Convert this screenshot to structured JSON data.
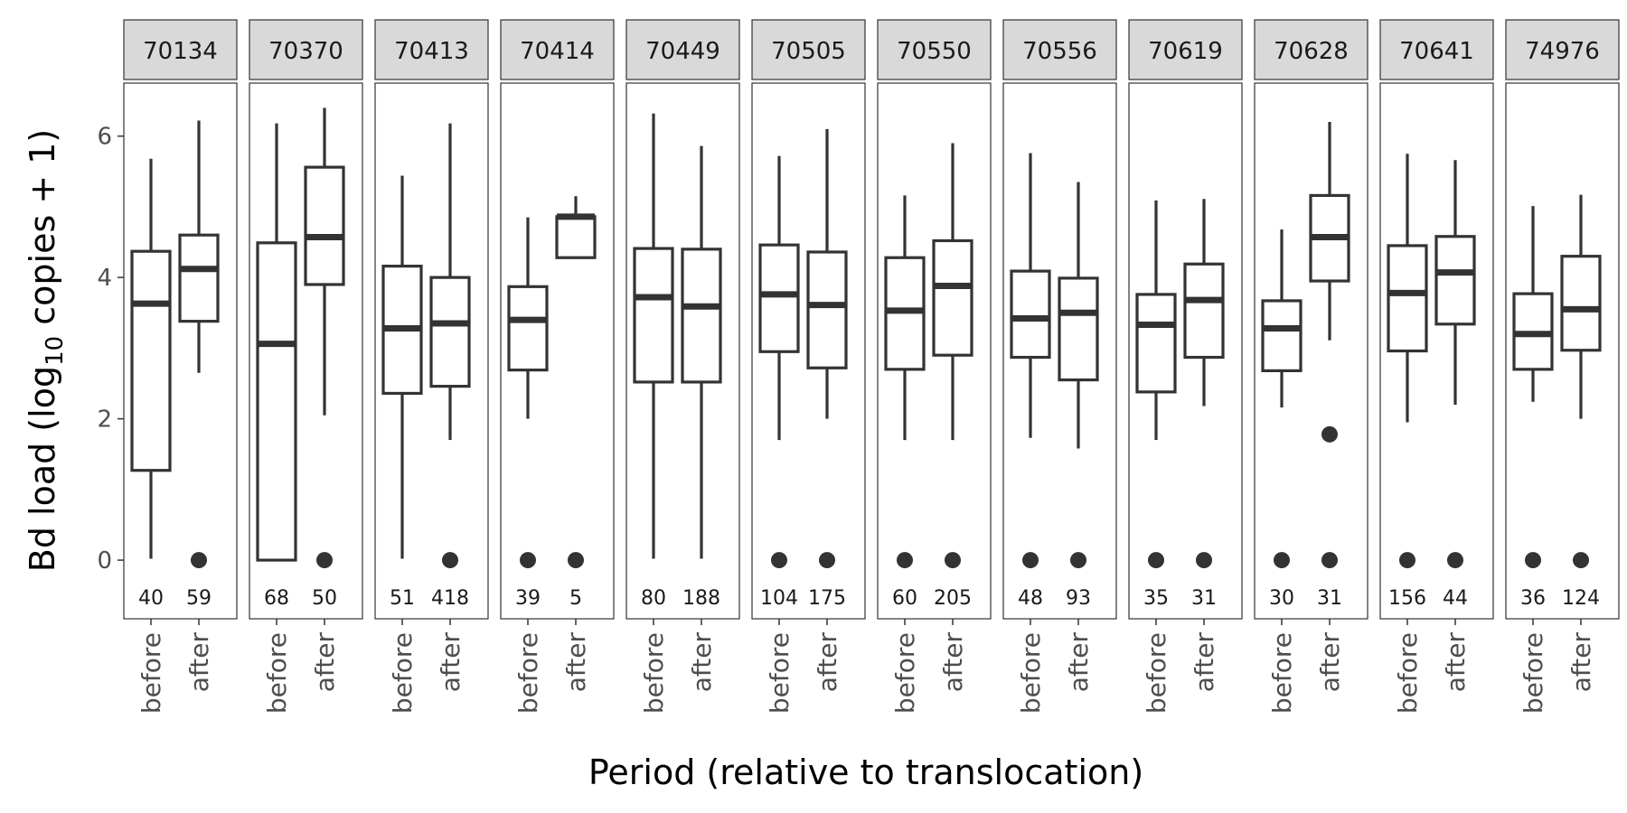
{
  "chart_data": {
    "type": "boxplot",
    "xlabel": "Period (relative to translocation)",
    "ylabel": {
      "prefix": "Bd load (log",
      "subscript": "10",
      "suffix": " copies + 1)"
    },
    "categories": [
      "before",
      "after"
    ],
    "yticks": [
      0,
      2,
      4,
      6
    ],
    "ylim": [
      -0.83,
      6.75
    ],
    "facets": [
      {
        "label": "70134",
        "groups": [
          {
            "period": "before",
            "n": "40",
            "lower": 0.02,
            "q1": 1.27,
            "median": 3.63,
            "q3": 4.37,
            "upper": 5.68,
            "outliers": []
          },
          {
            "period": "after",
            "n": "59",
            "lower": 2.65,
            "q1": 3.38,
            "median": 4.12,
            "q3": 4.6,
            "upper": 6.22,
            "outliers": [
              0
            ]
          }
        ]
      },
      {
        "label": "70370",
        "groups": [
          {
            "period": "before",
            "n": "68",
            "lower": 0.0,
            "q1": 0.0,
            "median": 3.06,
            "q3": 4.49,
            "upper": 6.18,
            "outliers": []
          },
          {
            "period": "after",
            "n": "50",
            "lower": 2.05,
            "q1": 3.9,
            "median": 4.57,
            "q3": 5.56,
            "upper": 6.4,
            "outliers": [
              0
            ]
          }
        ]
      },
      {
        "label": "70413",
        "groups": [
          {
            "period": "before",
            "n": "51",
            "lower": 0.02,
            "q1": 2.36,
            "median": 3.28,
            "q3": 4.16,
            "upper": 5.44,
            "outliers": []
          },
          {
            "period": "after",
            "n": "418",
            "lower": 1.7,
            "q1": 2.46,
            "median": 3.35,
            "q3": 4.0,
            "upper": 6.18,
            "outliers": [
              0
            ]
          }
        ]
      },
      {
        "label": "70414",
        "groups": [
          {
            "period": "before",
            "n": "39",
            "lower": 2.0,
            "q1": 2.69,
            "median": 3.4,
            "q3": 3.87,
            "upper": 4.85,
            "outliers": [
              0
            ]
          },
          {
            "period": "after",
            "n": "5",
            "lower": 4.28,
            "q1": 4.28,
            "median": 4.86,
            "q3": 4.86,
            "upper": 5.15,
            "outliers": [
              0
            ]
          }
        ]
      },
      {
        "label": "70449",
        "groups": [
          {
            "period": "before",
            "n": "80",
            "lower": 0.02,
            "q1": 2.52,
            "median": 3.72,
            "q3": 4.41,
            "upper": 6.32,
            "outliers": []
          },
          {
            "period": "after",
            "n": "188",
            "lower": 0.02,
            "q1": 2.52,
            "median": 3.59,
            "q3": 4.4,
            "upper": 5.86,
            "outliers": []
          }
        ]
      },
      {
        "label": "70505",
        "groups": [
          {
            "period": "before",
            "n": "104",
            "lower": 1.7,
            "q1": 2.95,
            "median": 3.76,
            "q3": 4.46,
            "upper": 5.72,
            "outliers": [
              0
            ]
          },
          {
            "period": "after",
            "n": "175",
            "lower": 2.0,
            "q1": 2.72,
            "median": 3.61,
            "q3": 4.36,
            "upper": 6.1,
            "outliers": [
              0
            ]
          }
        ]
      },
      {
        "label": "70550",
        "groups": [
          {
            "period": "before",
            "n": "60",
            "lower": 1.7,
            "q1": 2.7,
            "median": 3.53,
            "q3": 4.28,
            "upper": 5.16,
            "outliers": [
              0
            ]
          },
          {
            "period": "after",
            "n": "205",
            "lower": 1.7,
            "q1": 2.9,
            "median": 3.88,
            "q3": 4.52,
            "upper": 5.9,
            "outliers": [
              0
            ]
          }
        ]
      },
      {
        "label": "70556",
        "groups": [
          {
            "period": "before",
            "n": "48",
            "lower": 1.73,
            "q1": 2.87,
            "median": 3.42,
            "q3": 4.09,
            "upper": 5.76,
            "outliers": [
              0
            ]
          },
          {
            "period": "after",
            "n": "93",
            "lower": 1.58,
            "q1": 2.55,
            "median": 3.5,
            "q3": 3.99,
            "upper": 5.35,
            "outliers": [
              0
            ]
          }
        ]
      },
      {
        "label": "70619",
        "groups": [
          {
            "period": "before",
            "n": "35",
            "lower": 1.7,
            "q1": 2.38,
            "median": 3.33,
            "q3": 3.76,
            "upper": 5.09,
            "outliers": [
              0
            ]
          },
          {
            "period": "after",
            "n": "31",
            "lower": 2.18,
            "q1": 2.87,
            "median": 3.68,
            "q3": 4.19,
            "upper": 5.11,
            "outliers": [
              0
            ]
          }
        ]
      },
      {
        "label": "70628",
        "groups": [
          {
            "period": "before",
            "n": "30",
            "lower": 2.16,
            "q1": 2.68,
            "median": 3.28,
            "q3": 3.67,
            "upper": 4.68,
            "outliers": [
              0
            ]
          },
          {
            "period": "after",
            "n": "31",
            "lower": 3.11,
            "q1": 3.95,
            "median": 4.57,
            "q3": 5.16,
            "upper": 6.2,
            "outliers": [
              1.78,
              0
            ]
          }
        ]
      },
      {
        "label": "70641",
        "groups": [
          {
            "period": "before",
            "n": "156",
            "lower": 1.95,
            "q1": 2.96,
            "median": 3.78,
            "q3": 4.45,
            "upper": 5.75,
            "outliers": [
              0
            ]
          },
          {
            "period": "after",
            "n": "44",
            "lower": 2.2,
            "q1": 3.34,
            "median": 4.07,
            "q3": 4.58,
            "upper": 5.66,
            "outliers": [
              0
            ]
          }
        ]
      },
      {
        "label": "74976",
        "groups": [
          {
            "period": "before",
            "n": "36",
            "lower": 2.24,
            "q1": 2.7,
            "median": 3.2,
            "q3": 3.77,
            "upper": 5.01,
            "outliers": [
              0
            ]
          },
          {
            "period": "after",
            "n": "124",
            "lower": 2.0,
            "q1": 2.97,
            "median": 3.55,
            "q3": 4.3,
            "upper": 5.17,
            "outliers": [
              0
            ]
          }
        ]
      }
    ]
  }
}
